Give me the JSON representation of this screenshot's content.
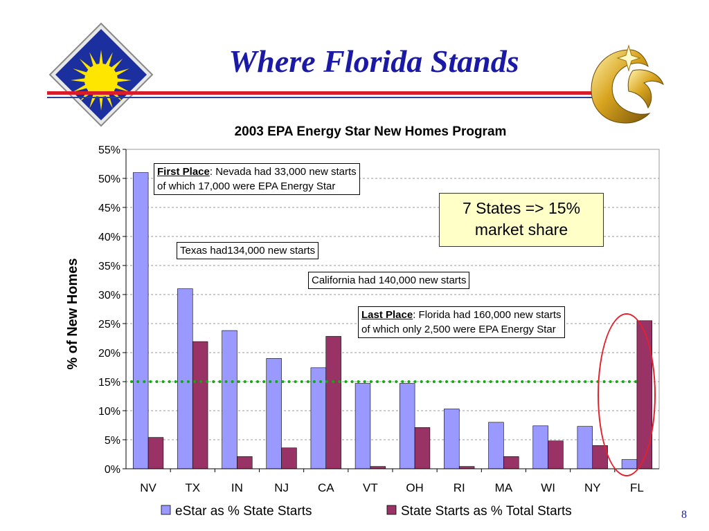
{
  "slide": {
    "title": "Where Florida Stands",
    "page_number": "8"
  },
  "colors": {
    "estar_series": "#9999ff",
    "state_series": "#993366",
    "threshold_line": "#11aa11",
    "title_blue": "#1a1aa6",
    "rule_red": "#d81c2a",
    "ellipse_red": "#e4202c",
    "callout_fill": "#ffffc8"
  },
  "icons": [
    "sun-seal-logo",
    "pegasus-logo"
  ],
  "annotations": {
    "first_place_label": "First Place",
    "first_place_line1": ": Nevada had 33,000 new starts",
    "first_place_line2": "of which 17,000 were EPA Energy Star",
    "texas": "Texas had134,000 new starts",
    "california": "California had 140,000 new starts",
    "last_place_label": "Last Place",
    "last_place_line1": ": Florida had 160,000 new starts",
    "last_place_line2": "of which only 2,500 were EPA Energy Star",
    "share_line1": "7 States => 15%",
    "share_line2": "market share"
  },
  "chart_data": {
    "type": "bar",
    "title": "2003 EPA Energy Star New Homes Program",
    "ylabel": "% of New Homes",
    "xlabel": "",
    "ylim": [
      0,
      55
    ],
    "ytick_labels": [
      "0%",
      "5%",
      "10%",
      "15%",
      "20%",
      "25%",
      "30%",
      "35%",
      "40%",
      "45%",
      "50%",
      "55%"
    ],
    "grid": true,
    "legend_position": "bottom",
    "categories": [
      "NV",
      "TX",
      "IN",
      "NJ",
      "CA",
      "VT",
      "OH",
      "RI",
      "MA",
      "WI",
      "NY",
      "FL"
    ],
    "series": [
      {
        "name": "eStar as % State Starts",
        "values": [
          51.0,
          31.0,
          23.8,
          19.0,
          17.4,
          14.7,
          14.7,
          10.3,
          8.0,
          7.4,
          7.3,
          1.6
        ]
      },
      {
        "name": "State Starts as % Total Starts",
        "values": [
          5.4,
          21.9,
          2.1,
          3.6,
          22.8,
          0.4,
          7.1,
          0.4,
          2.1,
          4.8,
          4.0,
          25.5
        ]
      }
    ],
    "threshold": 15
  }
}
